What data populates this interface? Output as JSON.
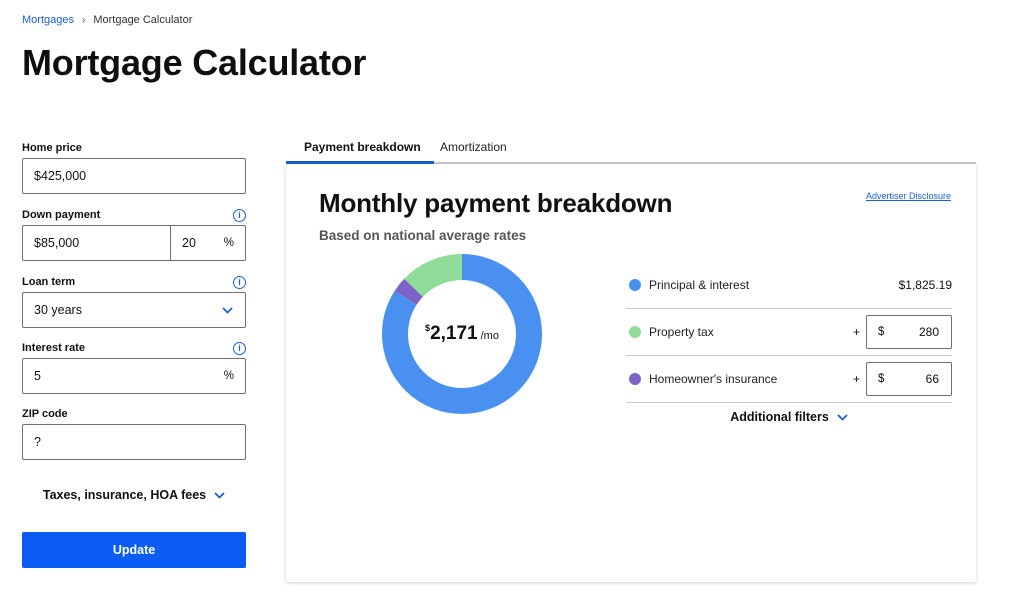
{
  "breadcrumb": {
    "parent": "Mortgages",
    "separator": "›",
    "current": "Mortgage Calculator"
  },
  "page_title": "Mortgage Calculator",
  "form": {
    "home_price": {
      "label": "Home price",
      "value": "$425,000"
    },
    "down_payment": {
      "label": "Down payment",
      "value": "$85,000",
      "percent": "20",
      "percent_suffix": "%"
    },
    "loan_term": {
      "label": "Loan term",
      "value": "30 years"
    },
    "interest_rate": {
      "label": "Interest rate",
      "value": "5",
      "suffix": "%"
    },
    "zip_code": {
      "label": "ZIP code",
      "value": "?"
    },
    "extra_toggle": "Taxes, insurance, HOA fees",
    "update_button": "Update"
  },
  "tabs": [
    {
      "label": "Payment breakdown",
      "active": true
    },
    {
      "label": "Amortization",
      "active": false
    }
  ],
  "card": {
    "title": "Monthly payment breakdown",
    "subtitle": "Based on national average rates",
    "disclosure": "Advertiser Disclosure",
    "donut": {
      "currency": "$",
      "amount": "2,171",
      "per": "/mo"
    },
    "items": [
      {
        "label": "Principal & interest",
        "value": "$1,825.19",
        "color": "#4a90f0",
        "numeric": 1825.19
      },
      {
        "label": "Property tax",
        "plus": "+",
        "currency": "$",
        "value": "280",
        "color": "#8fdc9a",
        "numeric": 280
      },
      {
        "label": "Homeowner's insurance",
        "plus": "+",
        "currency": "$",
        "value": "66",
        "color": "#7e63c7",
        "numeric": 66
      }
    ],
    "additional_filters": "Additional filters"
  },
  "colors": {
    "accent": "#1a5fd6",
    "button": "#0a5cf5"
  },
  "icons": {
    "info": "info-icon",
    "chevron": "chevron-down-icon",
    "separator": "chevron-right-icon"
  }
}
